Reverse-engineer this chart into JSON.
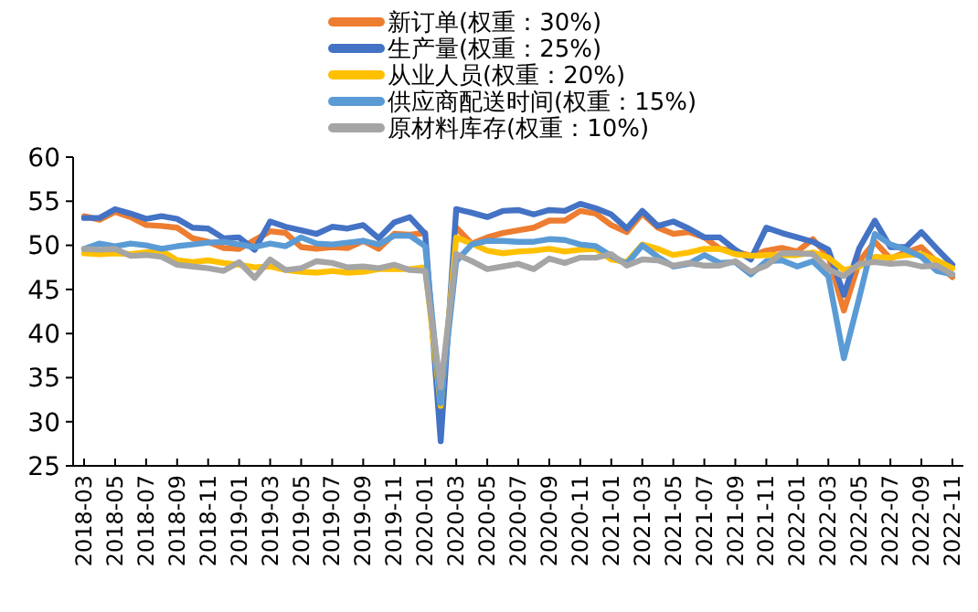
{
  "chart_data": {
    "type": "line",
    "categories": [
      "2018-03",
      null,
      "2018-05",
      null,
      "2018-07",
      null,
      "2018-09",
      null,
      "2018-11",
      null,
      "2019-01",
      null,
      "2019-03",
      null,
      "2019-05",
      null,
      "2019-07",
      null,
      "2019-09",
      null,
      "2019-11",
      null,
      "2020-01",
      null,
      "2020-03",
      null,
      "2020-05",
      null,
      "2020-07",
      null,
      "2020-09",
      null,
      "2020-11",
      null,
      "2021-01",
      null,
      "2021-03",
      null,
      "2021-05",
      null,
      "2021-07",
      null,
      "2021-09",
      null,
      "2021-11",
      null,
      "2022-01",
      null,
      "2022-03",
      null,
      "2022-05",
      null,
      "2022-07",
      null,
      "2022-09",
      null,
      "2022-11"
    ],
    "series": [
      {
        "name": "新订单(权重：30%)",
        "color": "#ed7d31",
        "values": [
          53.3,
          52.9,
          53.8,
          53.2,
          52.3,
          52.2,
          52.0,
          50.8,
          50.4,
          49.7,
          49.6,
          50.6,
          51.6,
          51.4,
          49.8,
          49.6,
          49.8,
          49.7,
          50.5,
          49.6,
          51.3,
          51.2,
          51.4,
          null,
          52.0,
          50.2,
          50.9,
          51.4,
          51.7,
          52.0,
          52.8,
          52.8,
          53.9,
          53.6,
          52.3,
          51.5,
          53.6,
          52.0,
          51.3,
          51.5,
          50.9,
          49.6,
          49.3,
          48.8,
          49.4,
          49.7,
          49.3,
          50.7,
          48.8,
          42.6,
          48.2,
          50.4,
          48.5,
          49.2,
          49.8,
          48.1,
          46.4
        ]
      },
      {
        "name": "生产量(权重：25%)",
        "color": "#4472c4",
        "values": [
          53.1,
          53.1,
          54.1,
          53.6,
          53.0,
          53.3,
          53.0,
          52.0,
          51.9,
          50.8,
          50.9,
          49.5,
          52.7,
          52.1,
          51.7,
          51.3,
          52.1,
          51.9,
          52.3,
          50.8,
          52.6,
          53.2,
          51.3,
          27.8,
          54.1,
          53.7,
          53.2,
          53.9,
          54.0,
          53.5,
          54.0,
          53.9,
          54.7,
          54.2,
          53.5,
          51.9,
          53.9,
          52.2,
          52.7,
          51.9,
          50.9,
          50.9,
          49.5,
          48.4,
          52.0,
          51.4,
          50.9,
          50.4,
          49.5,
          44.4,
          49.7,
          52.8,
          49.8,
          49.8,
          51.5,
          49.6,
          47.8
        ]
      },
      {
        "name": "从业人员(权重：20%)",
        "color": "#ffc000",
        "values": [
          49.1,
          49.0,
          49.1,
          49.0,
          49.2,
          49.4,
          48.3,
          48.1,
          48.3,
          48.0,
          47.8,
          47.5,
          47.6,
          47.2,
          47.0,
          46.9,
          47.1,
          46.9,
          47.0,
          47.3,
          47.3,
          47.3,
          47.5,
          31.8,
          50.9,
          50.2,
          49.4,
          49.1,
          49.3,
          49.4,
          49.6,
          49.3,
          49.5,
          49.6,
          48.4,
          48.1,
          50.1,
          49.6,
          48.9,
          49.2,
          49.6,
          49.6,
          49.0,
          48.8,
          48.9,
          48.9,
          48.9,
          49.2,
          48.6,
          47.2,
          47.6,
          48.7,
          48.6,
          48.9,
          49.0,
          48.3,
          47.4
        ]
      },
      {
        "name": "供应商配送时间(权重：15%)",
        "color": "#5b9bd5",
        "values": [
          49.6,
          50.2,
          49.9,
          50.2,
          50.0,
          49.6,
          49.9,
          50.1,
          50.3,
          50.4,
          50.1,
          49.8,
          50.2,
          49.9,
          50.9,
          50.2,
          50.1,
          50.3,
          50.5,
          50.1,
          51.1,
          51.1,
          49.9,
          32.1,
          48.2,
          50.1,
          50.5,
          50.5,
          50.4,
          50.4,
          50.7,
          50.6,
          50.1,
          49.9,
          48.8,
          47.9,
          50.0,
          48.7,
          47.6,
          47.9,
          48.9,
          48.0,
          48.1,
          46.7,
          48.2,
          48.3,
          47.6,
          48.2,
          46.5,
          37.2,
          44.1,
          51.3,
          50.1,
          49.5,
          48.7,
          47.1,
          46.7
        ]
      },
      {
        "name": "原材料库存(权重：10%)",
        "color": "#a5a5a5",
        "values": [
          49.6,
          49.5,
          49.6,
          48.8,
          48.9,
          48.7,
          47.8,
          47.6,
          47.4,
          47.1,
          48.1,
          46.3,
          48.4,
          47.2,
          47.4,
          48.2,
          48.0,
          47.5,
          47.6,
          47.4,
          47.8,
          47.2,
          47.1,
          33.9,
          49.0,
          48.2,
          47.3,
          47.6,
          47.9,
          47.3,
          48.5,
          48.0,
          48.6,
          48.6,
          49.0,
          47.7,
          48.4,
          48.3,
          47.7,
          48.0,
          47.7,
          47.7,
          48.2,
          47.0,
          47.7,
          49.1,
          49.1,
          49.0,
          47.3,
          46.5,
          47.9,
          48.1,
          47.9,
          48.0,
          47.6,
          47.7,
          46.7
        ]
      }
    ],
    "ylim": [
      25,
      60
    ],
    "yticks": [
      25,
      30,
      35,
      40,
      45,
      50,
      55,
      60
    ],
    "grid": false,
    "legend": "top",
    "marker": "none",
    "line_style": "solid"
  }
}
